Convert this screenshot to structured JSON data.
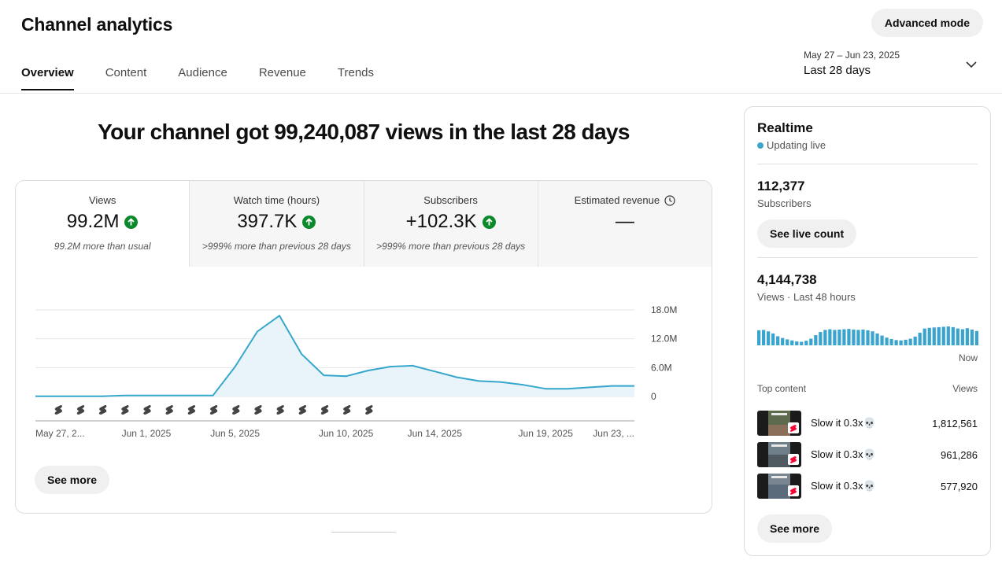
{
  "header": {
    "title": "Channel analytics",
    "advanced_mode": "Advanced mode",
    "tabs": [
      {
        "label": "Overview",
        "active": true
      },
      {
        "label": "Content",
        "active": false
      },
      {
        "label": "Audience",
        "active": false
      },
      {
        "label": "Revenue",
        "active": false
      },
      {
        "label": "Trends",
        "active": false
      }
    ],
    "date_range": "May 27 – Jun 23, 2025",
    "period": "Last 28 days"
  },
  "headline": "Your channel got 99,240,087 views in the last 28 days",
  "metrics": [
    {
      "label": "Views",
      "value": "99.2M",
      "trend": "up",
      "note": "99.2M more than usual"
    },
    {
      "label": "Watch time (hours)",
      "value": "397.7K",
      "trend": "up",
      "note": ">999% more than previous 28 days"
    },
    {
      "label": "Subscribers",
      "value": "+102.3K",
      "trend": "up",
      "note": ">999% more than previous 28 days"
    },
    {
      "label": "Estimated revenue",
      "value": "—",
      "trend": "none",
      "note": "",
      "icon": "clock-icon"
    }
  ],
  "chart_data": {
    "type": "area",
    "x": [
      "May 27",
      "May 28",
      "May 29",
      "May 30",
      "May 31",
      "Jun 1",
      "Jun 2",
      "Jun 3",
      "Jun 4",
      "Jun 5",
      "Jun 6",
      "Jun 7",
      "Jun 8",
      "Jun 9",
      "Jun 10",
      "Jun 11",
      "Jun 12",
      "Jun 13",
      "Jun 14",
      "Jun 15",
      "Jun 16",
      "Jun 17",
      "Jun 18",
      "Jun 19",
      "Jun 20",
      "Jun 21",
      "Jun 22",
      "Jun 23"
    ],
    "series": [
      {
        "values": [
          0.05,
          0.05,
          0.05,
          0.05,
          0.2,
          0.2,
          0.2,
          0.2,
          0.2,
          6.2,
          13.5,
          16.8,
          8.8,
          4.4,
          4.2,
          5.4,
          6.2,
          6.4,
          5.2,
          4.0,
          3.2,
          3.0,
          2.4,
          1.6,
          1.6,
          1.9,
          2.2,
          2.2
        ]
      }
    ],
    "value_unit": "M",
    "ylim": [
      0,
      18
    ],
    "yticks": [
      "18.0M",
      "12.0M",
      "6.0M",
      "0"
    ],
    "ytick_values": [
      18,
      12,
      6,
      0
    ],
    "xtick_labels": [
      "May 27, 2...",
      "Jun 1, 2025",
      "Jun 5, 2025",
      "Jun 10, 2025",
      "Jun 14, 2025",
      "Jun 19, 2025",
      "Jun 23, ..."
    ],
    "xtick_days": [
      0,
      5,
      9,
      14,
      18,
      23,
      27
    ],
    "shorts_marker_days": [
      1,
      2,
      3,
      4,
      5,
      6,
      7,
      8,
      9,
      10,
      11,
      12,
      13,
      14,
      15
    ],
    "grid": true,
    "colors": {
      "line": "#35a6cc",
      "fill": "#e8f4fa",
      "grid": "#e6e6e6",
      "axis": "#cfcfcf"
    }
  },
  "see_more": "See more",
  "realtime": {
    "title": "Realtime",
    "status": "Updating live",
    "subscribers": "112,377",
    "subscribers_label": "Subscribers",
    "live_count_button": "See live count",
    "views": "4,144,738",
    "views_label": "Views · Last 48 hours",
    "hourly_views": [
      0.86,
      0.88,
      0.8,
      0.68,
      0.52,
      0.42,
      0.34,
      0.28,
      0.22,
      0.2,
      0.26,
      0.38,
      0.58,
      0.76,
      0.88,
      0.92,
      0.88,
      0.9,
      0.92,
      0.94,
      0.9,
      0.88,
      0.9,
      0.86,
      0.8,
      0.68,
      0.56,
      0.44,
      0.36,
      0.3,
      0.28,
      0.32,
      0.38,
      0.5,
      0.72,
      0.96,
      1.0,
      1.02,
      1.04,
      1.06,
      1.08,
      1.04,
      0.96,
      0.92,
      0.98,
      0.9,
      0.82
    ],
    "now_label": "Now",
    "top_content_label": "Top content",
    "views_col": "Views",
    "top_content": [
      {
        "title": "Slow it 0.3x💀",
        "views": "1,812,561"
      },
      {
        "title": "Slow it 0.3x💀",
        "views": "961,286"
      },
      {
        "title": "Slow it 0.3x💀",
        "views": "577,920"
      }
    ],
    "see_more": "See more"
  }
}
